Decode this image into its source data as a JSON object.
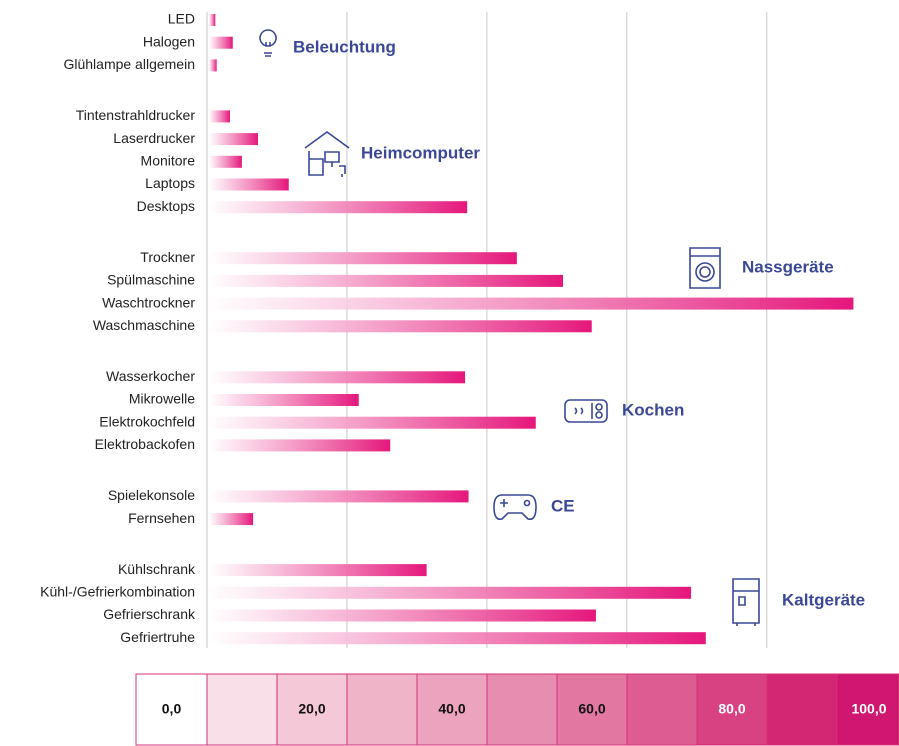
{
  "chart_data": {
    "type": "bar",
    "orientation": "horizontal",
    "color": "#e5177b",
    "xlim": [
      0,
      98.9
    ],
    "xticks": [
      0,
      20,
      40,
      60,
      80
    ],
    "grid": true,
    "groups": [
      {
        "label": "Beleuchtung",
        "categories": [
          "LED",
          "Halogen",
          "Glühlampe allgemein"
        ],
        "values": [
          0.9,
          3.4,
          1.1
        ]
      },
      {
        "label": "Heimcomputer",
        "categories": [
          "Tintenstrahldrucker",
          "Laserdrucker",
          "Monitore",
          "Laptops",
          "Desktops"
        ],
        "values": [
          3.0,
          7.0,
          4.7,
          11.4,
          36.9
        ]
      },
      {
        "label": "Nassgeräte",
        "categories": [
          "Trockner",
          "Spülmaschine",
          "Waschtrockner",
          "Waschmaschine"
        ],
        "values": [
          44.0,
          50.6,
          92.1,
          54.7
        ]
      },
      {
        "label": "Kochen",
        "categories": [
          "Wasserkocher",
          "Mikrowelle",
          "Elektrokochfeld",
          "Elektrobackofen"
        ],
        "values": [
          36.6,
          21.4,
          46.7,
          25.9
        ]
      },
      {
        "label": "CE",
        "categories": [
          "Spielekonsole",
          "Fernsehen"
        ],
        "values": [
          37.1,
          6.3
        ]
      },
      {
        "label": "Kaltgeräte",
        "categories": [
          "Kühlschrank",
          "Kühl-/Gefrierkombination",
          "Gefrierschrank",
          "Gefriertruhe"
        ],
        "values": [
          31.1,
          68.9,
          55.3,
          71.0
        ]
      }
    ],
    "colorscale": {
      "colors": [
        "#ffffff",
        "#f9dfe8",
        "#f5c8d7",
        "#f0b4c9",
        "#eca3bd",
        "#e78db0",
        "#e277a2",
        "#dd5c91",
        "#d84283",
        "#d32673",
        "#cf1770"
      ],
      "ticks": [
        {
          "value": 0,
          "label": "0,0"
        },
        {
          "value": 20,
          "label": "20,0"
        },
        {
          "value": 40,
          "label": "40,0"
        },
        {
          "value": 60,
          "label": "60,0"
        },
        {
          "value": 80,
          "label": "80,0"
        },
        {
          "value": 100,
          "label": "100,0"
        }
      ]
    }
  }
}
